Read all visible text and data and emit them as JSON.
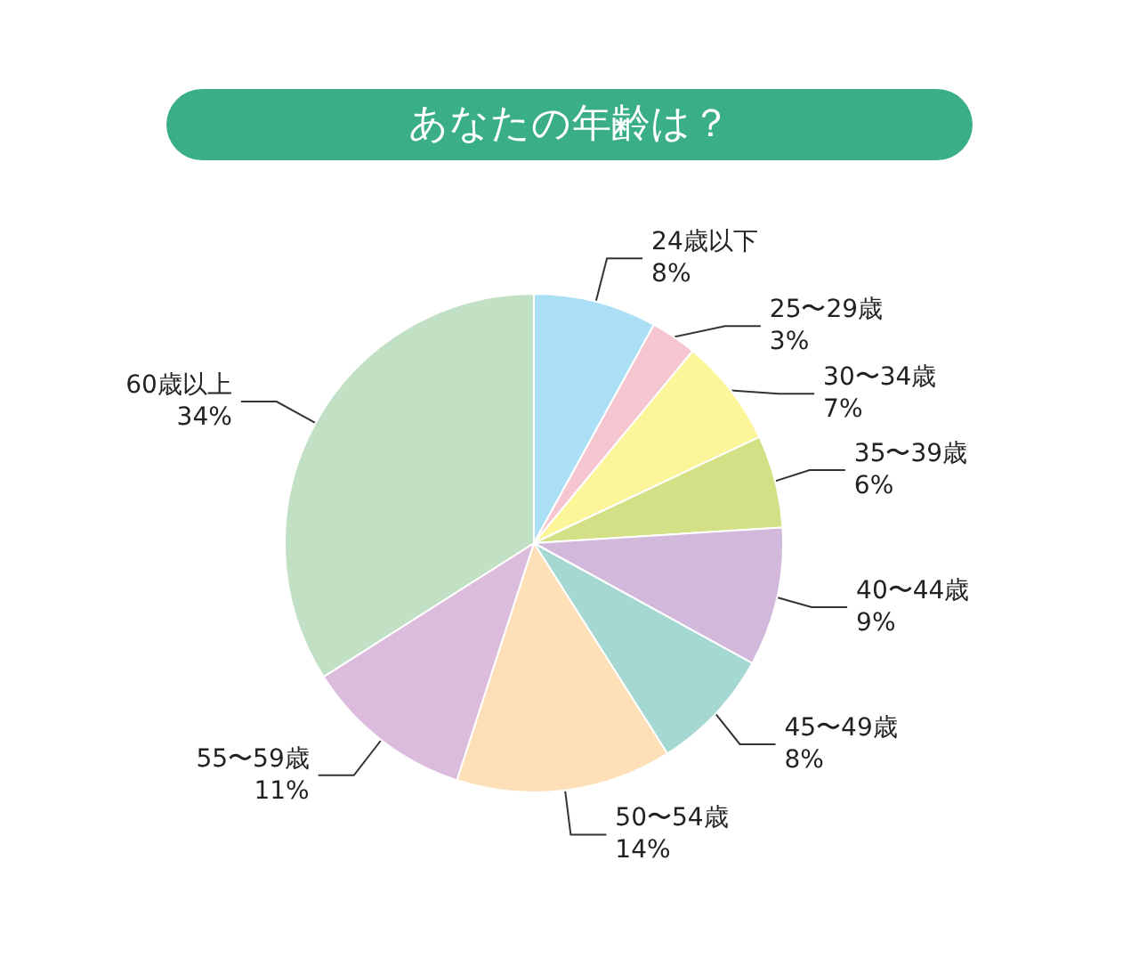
{
  "chart_data": {
    "type": "pie",
    "title": "あなたの年齢は？",
    "categories": [
      "24歳以下",
      "25〜29歳",
      "30〜34歳",
      "35〜39歳",
      "40〜44歳",
      "45〜49歳",
      "50〜54歳",
      "55〜59歳",
      "60歳以上"
    ],
    "values": [
      8,
      3,
      7,
      6,
      9,
      8,
      14,
      11,
      34
    ],
    "colors": [
      "#aadff5",
      "#f5c6cf",
      "#fdf59a",
      "#d3e085",
      "#d2b9dc",
      "#a5d8d3",
      "#fde0b8",
      "#dbbcdc",
      "#c1e0c4"
    ],
    "value_labels": [
      "8%",
      "3%",
      "7%",
      "6%",
      "9%",
      "8%",
      "14%",
      "11%",
      "34%"
    ],
    "legend": false
  }
}
